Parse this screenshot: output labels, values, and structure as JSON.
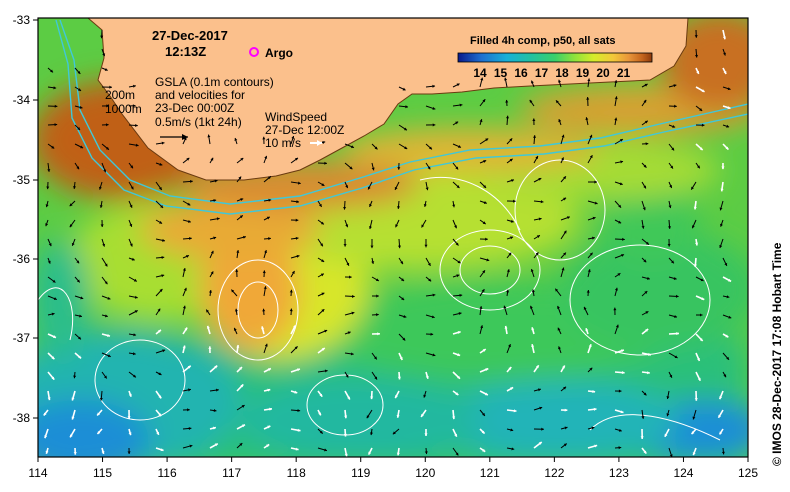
{
  "date_line": "27-Dec-2017",
  "time_line": "12:13Z",
  "argo_label": "Argo",
  "colorbar_title": "Filled 4h comp, p50, all sats",
  "colorbar_ticks": [
    "14",
    "15",
    "16",
    "17",
    "18",
    "19",
    "20",
    "21"
  ],
  "isobaths": [
    "200m",
    "1000m"
  ],
  "gsla_lines": [
    "GSLA (0.1m contours)",
    "and velocities for",
    "23-Dec 00:00Z"
  ],
  "velocity_scale": "0.5m/s (1kt 24h)",
  "wind_lines": [
    "WindSpeed",
    "27-Dec 12:00Z",
    "10 m/s"
  ],
  "credit": "© IMOS 28-Dec-2017 17:08 Hobart Time",
  "x_ticks": [
    "114",
    "115",
    "116",
    "117",
    "118",
    "119",
    "120",
    "121",
    "122",
    "123",
    "124",
    "125"
  ],
  "y_ticks": [
    "-33",
    "-34",
    "-35",
    "-36",
    "-37",
    "-38"
  ],
  "colors": {
    "land": "#fbc08c",
    "isobath": "#40c8d8",
    "contour": "#ffffff",
    "argo": "#ff00ff"
  },
  "colormap": [
    "#0a1a8c",
    "#1f6fd0",
    "#18b0d8",
    "#22c2a0",
    "#3ad06a",
    "#8ee23c",
    "#d6ec2a",
    "#f3c83a",
    "#e8963a",
    "#c4641c",
    "#8c3a0c"
  ]
}
